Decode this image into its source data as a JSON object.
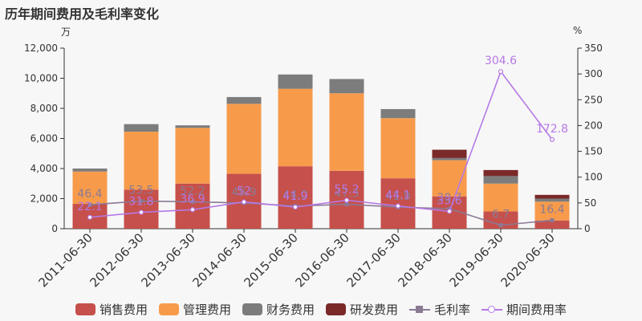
{
  "title": "历年期间费用及毛利率变化",
  "y_left_unit": "万",
  "y_right_unit": "%",
  "legend": [
    {
      "name": "销售费用",
      "color": "#c6504b",
      "kind": "bar"
    },
    {
      "name": "管理费用",
      "color": "#f79b4b",
      "kind": "bar"
    },
    {
      "name": "财务费用",
      "color": "#7c7c7c",
      "kind": "bar"
    },
    {
      "name": "研发费用",
      "color": "#7a2a29",
      "kind": "bar"
    },
    {
      "name": "毛利率",
      "color": "#8b7a94",
      "kind": "line-square"
    },
    {
      "name": "期间费用率",
      "color": "#b679e6",
      "kind": "line-circle"
    }
  ],
  "chart_data": {
    "type": "bar",
    "categories": [
      "2011-06-30",
      "2012-06-30",
      "2013-06-30",
      "2014-06-30",
      "2015-06-30",
      "2016-06-30",
      "2017-06-30",
      "2018-06-30",
      "2019-06-30",
      "2020-06-30"
    ],
    "series": [
      {
        "name": "销售费用",
        "color": "#c6504b",
        "values": [
          1650,
          2600,
          3000,
          3650,
          4150,
          3850,
          3350,
          2150,
          1150,
          550
        ]
      },
      {
        "name": "管理费用",
        "color": "#f79b4b",
        "values": [
          2150,
          3850,
          3700,
          4650,
          5150,
          5150,
          4000,
          2400,
          1850,
          1250
        ]
      },
      {
        "name": "财务费用",
        "color": "#7c7c7c",
        "values": [
          200,
          500,
          170,
          450,
          950,
          950,
          600,
          150,
          500,
          200
        ]
      },
      {
        "name": "研发费用",
        "color": "#7a2a29",
        "values": [
          0,
          0,
          0,
          0,
          0,
          0,
          0,
          550,
          400,
          250
        ]
      }
    ],
    "line_series": [
      {
        "name": "毛利率",
        "color": "#8b7a94",
        "marker": "square",
        "values": [
          46.4,
          53.5,
          52.2,
          49.9,
          44.0,
          47.3,
          41.9,
          38.7,
          6.7,
          16.4
        ],
        "labels": [
          "46.4",
          "53.5",
          "52.2",
          "49.9",
          "44.0",
          "47.3",
          "41.9",
          "38.7",
          "6.7",
          "16.4"
        ]
      },
      {
        "name": "期间费用率",
        "color": "#b679e6",
        "marker": "circle",
        "values": [
          22.1,
          31.8,
          36.9,
          52.0,
          41.9,
          55.2,
          44.1,
          33.6,
          304.6,
          172.8
        ],
        "labels": [
          "22.1",
          "31.8",
          "36.9",
          "52",
          "41.9",
          "55.2",
          "44.1",
          "33.6",
          "304.6",
          "172.8"
        ]
      }
    ],
    "y_left": {
      "min": 0,
      "max": 12000,
      "ticks": [
        0,
        2000,
        4000,
        6000,
        8000,
        10000,
        12000
      ],
      "tick_labels": [
        "0",
        "2,000",
        "4,000",
        "6,000",
        "8,000",
        "10,000",
        "12,000"
      ]
    },
    "y_right": {
      "min": 0,
      "max": 350,
      "ticks": [
        0,
        50,
        100,
        150,
        200,
        250,
        300,
        350
      ],
      "tick_labels": [
        "0",
        "50",
        "100",
        "150",
        "200",
        "250",
        "300",
        "350"
      ]
    },
    "grid": false,
    "legend_position": "bottom"
  }
}
